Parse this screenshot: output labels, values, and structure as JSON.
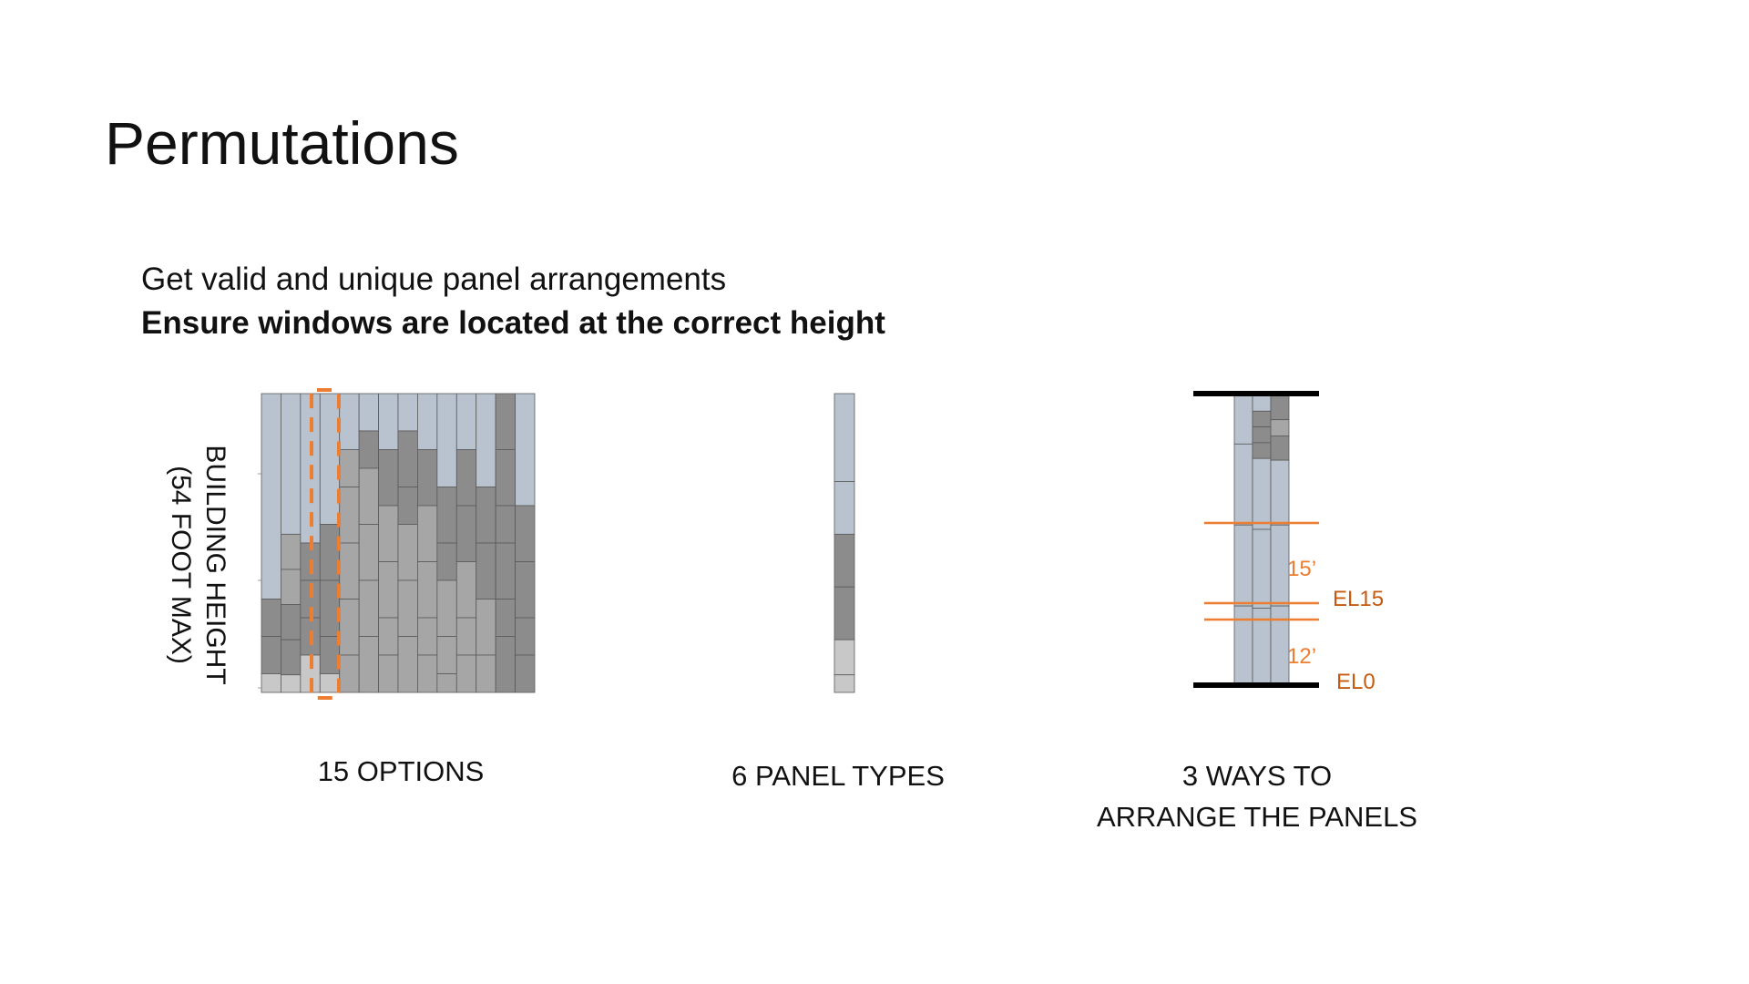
{
  "title": "Permutations",
  "subtitle_line1": "Get valid and unique panel arrangements",
  "subtitle_line2": "Ensure windows are located at the correct height",
  "building_height_label_line1": "BUILDING HEIGHT",
  "building_height_label_line2": "(54 FOOT MAX)",
  "captions": {
    "options": "15 OPTIONS",
    "panel_types": "6 PANEL TYPES",
    "ways_line1": "3 WAYS TO",
    "ways_line2": "ARRANGE THE PANELS"
  },
  "elevation_labels": {
    "upper_dimension": "15’",
    "lower_dimension": "12’",
    "el15": "EL15",
    "el0": "EL0"
  },
  "colors": {
    "panel_light_blue": "#b8c3cf",
    "panel_dark_gray": "#8c8c8c",
    "panel_mid_gray": "#a6a6a6",
    "panel_light_gray": "#c8c8c8",
    "highlight_orange": "#ed7d31",
    "elevation_orange": "#c55a11"
  }
}
